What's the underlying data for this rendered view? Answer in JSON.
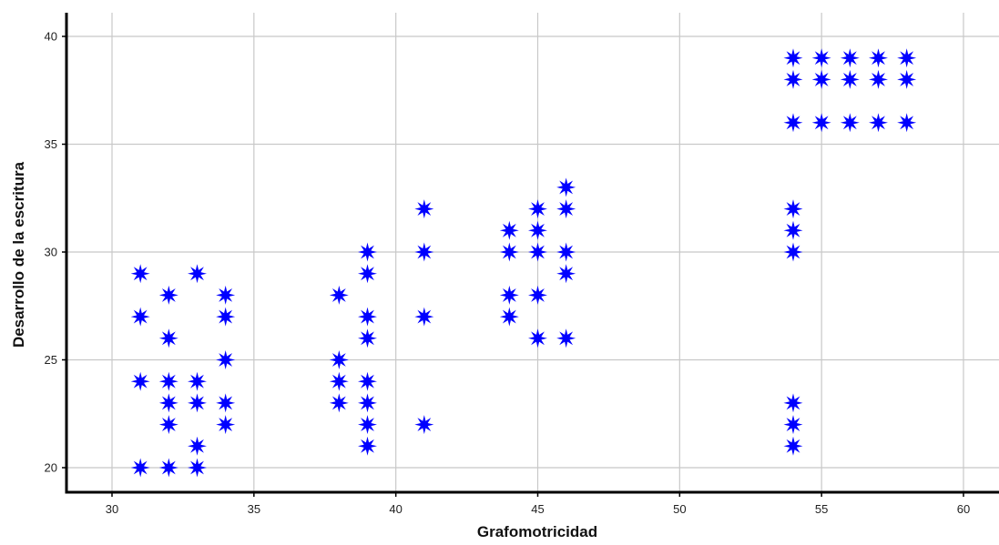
{
  "chart_data": {
    "type": "scatter",
    "title": "",
    "xlabel": "Grafomotricidad",
    "ylabel": "Desarrollo de la escritura",
    "xlim": [
      28.5,
      61.2
    ],
    "ylim": [
      19,
      41.1
    ],
    "xticks": [
      30,
      35,
      40,
      45,
      50,
      55,
      60
    ],
    "yticks": [
      20,
      25,
      30,
      35,
      40
    ],
    "grid": true,
    "marker": "eight-point-star",
    "marker_color": "#0000ff",
    "points": [
      {
        "x": 31,
        "y": 29
      },
      {
        "x": 31,
        "y": 27
      },
      {
        "x": 31,
        "y": 24
      },
      {
        "x": 31,
        "y": 20
      },
      {
        "x": 32,
        "y": 28
      },
      {
        "x": 32,
        "y": 26
      },
      {
        "x": 32,
        "y": 24
      },
      {
        "x": 32,
        "y": 23
      },
      {
        "x": 32,
        "y": 22
      },
      {
        "x": 32,
        "y": 20
      },
      {
        "x": 33,
        "y": 29
      },
      {
        "x": 33,
        "y": 24
      },
      {
        "x": 33,
        "y": 23
      },
      {
        "x": 33,
        "y": 21
      },
      {
        "x": 33,
        "y": 20
      },
      {
        "x": 34,
        "y": 28
      },
      {
        "x": 34,
        "y": 27
      },
      {
        "x": 34,
        "y": 25
      },
      {
        "x": 34,
        "y": 23
      },
      {
        "x": 34,
        "y": 22
      },
      {
        "x": 38,
        "y": 28
      },
      {
        "x": 38,
        "y": 25
      },
      {
        "x": 38,
        "y": 24
      },
      {
        "x": 38,
        "y": 23
      },
      {
        "x": 39,
        "y": 30
      },
      {
        "x": 39,
        "y": 29
      },
      {
        "x": 39,
        "y": 27
      },
      {
        "x": 39,
        "y": 26
      },
      {
        "x": 39,
        "y": 24
      },
      {
        "x": 39,
        "y": 23
      },
      {
        "x": 39,
        "y": 22
      },
      {
        "x": 39,
        "y": 21
      },
      {
        "x": 41,
        "y": 32
      },
      {
        "x": 41,
        "y": 30
      },
      {
        "x": 41,
        "y": 27
      },
      {
        "x": 41,
        "y": 22
      },
      {
        "x": 44,
        "y": 31
      },
      {
        "x": 44,
        "y": 30
      },
      {
        "x": 44,
        "y": 28
      },
      {
        "x": 44,
        "y": 27
      },
      {
        "x": 45,
        "y": 32
      },
      {
        "x": 45,
        "y": 31
      },
      {
        "x": 45,
        "y": 30
      },
      {
        "x": 45,
        "y": 28
      },
      {
        "x": 45,
        "y": 26
      },
      {
        "x": 46,
        "y": 33
      },
      {
        "x": 46,
        "y": 32
      },
      {
        "x": 46,
        "y": 30
      },
      {
        "x": 46,
        "y": 29
      },
      {
        "x": 46,
        "y": 26
      },
      {
        "x": 54,
        "y": 39
      },
      {
        "x": 54,
        "y": 38
      },
      {
        "x": 54,
        "y": 36
      },
      {
        "x": 54,
        "y": 32
      },
      {
        "x": 54,
        "y": 31
      },
      {
        "x": 54,
        "y": 30
      },
      {
        "x": 54,
        "y": 23
      },
      {
        "x": 54,
        "y": 22
      },
      {
        "x": 54,
        "y": 21
      },
      {
        "x": 55,
        "y": 39
      },
      {
        "x": 55,
        "y": 38
      },
      {
        "x": 55,
        "y": 36
      },
      {
        "x": 56,
        "y": 39
      },
      {
        "x": 56,
        "y": 38
      },
      {
        "x": 56,
        "y": 36
      },
      {
        "x": 57,
        "y": 39
      },
      {
        "x": 57,
        "y": 38
      },
      {
        "x": 57,
        "y": 36
      },
      {
        "x": 58,
        "y": 39
      },
      {
        "x": 58,
        "y": 38
      },
      {
        "x": 58,
        "y": 36
      }
    ]
  }
}
